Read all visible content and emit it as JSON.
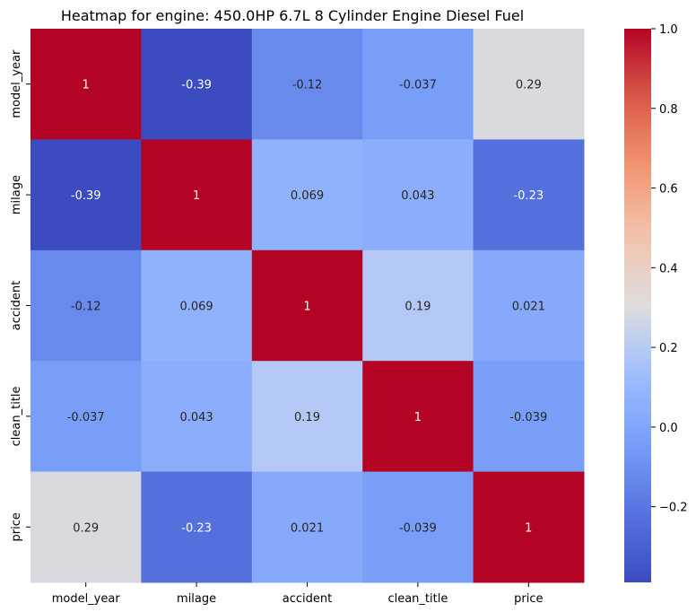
{
  "chart_data": {
    "type": "heatmap",
    "title": "Heatmap for engine: 450.0HP 6.7L 8 Cylinder Engine Diesel Fuel",
    "x_labels": [
      "model_year",
      "milage",
      "accident",
      "clean_title",
      "price"
    ],
    "y_labels": [
      "model_year",
      "milage",
      "accident",
      "clean_title",
      "price"
    ],
    "values": [
      [
        1,
        -0.39,
        -0.12,
        -0.037,
        0.29
      ],
      [
        -0.39,
        1,
        0.069,
        0.043,
        -0.23
      ],
      [
        -0.12,
        0.069,
        1,
        0.19,
        0.021
      ],
      [
        -0.037,
        0.043,
        0.19,
        1,
        -0.039
      ],
      [
        0.29,
        -0.23,
        0.021,
        -0.039,
        1
      ]
    ],
    "value_labels": [
      [
        "1",
        "-0.39",
        "-0.12",
        "-0.037",
        "0.29"
      ],
      [
        "-0.39",
        "1",
        "0.069",
        "0.043",
        "-0.23"
      ],
      [
        "-0.12",
        "0.069",
        "1",
        "0.19",
        "0.021"
      ],
      [
        "-0.037",
        "0.043",
        "0.19",
        "1",
        "-0.039"
      ],
      [
        "0.29",
        "-0.23",
        "0.021",
        "-0.039",
        "1"
      ]
    ],
    "colormap": "coolwarm",
    "colorbar": {
      "vmin": -0.39,
      "vmax": 1.0,
      "ticks": [
        1.0,
        0.8,
        0.6,
        0.4,
        0.2,
        0.0,
        -0.2
      ],
      "tick_labels": [
        "1.0",
        "0.8",
        "0.6",
        "0.4",
        "0.2",
        "0.0",
        "−0.2"
      ]
    },
    "grid": false,
    "legend": "colorbar-right"
  }
}
